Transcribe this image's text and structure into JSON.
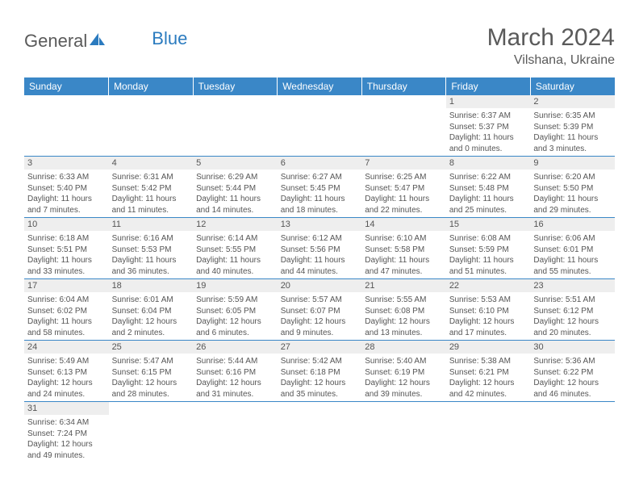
{
  "branding": {
    "logo_part1": "General",
    "logo_part2": "Blue",
    "logo_color1": "#5a5a5a",
    "logo_color2": "#2b7bbf"
  },
  "header": {
    "title": "March 2024",
    "location": "Vilshana, Ukraine"
  },
  "colors": {
    "header_bg": "#3a87c7",
    "header_text": "#ffffff",
    "daynum_bg": "#eeeeee",
    "border": "#3a87c7",
    "body_text": "#555555"
  },
  "weekdays": [
    "Sunday",
    "Monday",
    "Tuesday",
    "Wednesday",
    "Thursday",
    "Friday",
    "Saturday"
  ],
  "weeks": [
    [
      null,
      null,
      null,
      null,
      null,
      {
        "day": "1",
        "sunrise": "Sunrise: 6:37 AM",
        "sunset": "Sunset: 5:37 PM",
        "daylight": "Daylight: 11 hours and 0 minutes."
      },
      {
        "day": "2",
        "sunrise": "Sunrise: 6:35 AM",
        "sunset": "Sunset: 5:39 PM",
        "daylight": "Daylight: 11 hours and 3 minutes."
      }
    ],
    [
      {
        "day": "3",
        "sunrise": "Sunrise: 6:33 AM",
        "sunset": "Sunset: 5:40 PM",
        "daylight": "Daylight: 11 hours and 7 minutes."
      },
      {
        "day": "4",
        "sunrise": "Sunrise: 6:31 AM",
        "sunset": "Sunset: 5:42 PM",
        "daylight": "Daylight: 11 hours and 11 minutes."
      },
      {
        "day": "5",
        "sunrise": "Sunrise: 6:29 AM",
        "sunset": "Sunset: 5:44 PM",
        "daylight": "Daylight: 11 hours and 14 minutes."
      },
      {
        "day": "6",
        "sunrise": "Sunrise: 6:27 AM",
        "sunset": "Sunset: 5:45 PM",
        "daylight": "Daylight: 11 hours and 18 minutes."
      },
      {
        "day": "7",
        "sunrise": "Sunrise: 6:25 AM",
        "sunset": "Sunset: 5:47 PM",
        "daylight": "Daylight: 11 hours and 22 minutes."
      },
      {
        "day": "8",
        "sunrise": "Sunrise: 6:22 AM",
        "sunset": "Sunset: 5:48 PM",
        "daylight": "Daylight: 11 hours and 25 minutes."
      },
      {
        "day": "9",
        "sunrise": "Sunrise: 6:20 AM",
        "sunset": "Sunset: 5:50 PM",
        "daylight": "Daylight: 11 hours and 29 minutes."
      }
    ],
    [
      {
        "day": "10",
        "sunrise": "Sunrise: 6:18 AM",
        "sunset": "Sunset: 5:51 PM",
        "daylight": "Daylight: 11 hours and 33 minutes."
      },
      {
        "day": "11",
        "sunrise": "Sunrise: 6:16 AM",
        "sunset": "Sunset: 5:53 PM",
        "daylight": "Daylight: 11 hours and 36 minutes."
      },
      {
        "day": "12",
        "sunrise": "Sunrise: 6:14 AM",
        "sunset": "Sunset: 5:55 PM",
        "daylight": "Daylight: 11 hours and 40 minutes."
      },
      {
        "day": "13",
        "sunrise": "Sunrise: 6:12 AM",
        "sunset": "Sunset: 5:56 PM",
        "daylight": "Daylight: 11 hours and 44 minutes."
      },
      {
        "day": "14",
        "sunrise": "Sunrise: 6:10 AM",
        "sunset": "Sunset: 5:58 PM",
        "daylight": "Daylight: 11 hours and 47 minutes."
      },
      {
        "day": "15",
        "sunrise": "Sunrise: 6:08 AM",
        "sunset": "Sunset: 5:59 PM",
        "daylight": "Daylight: 11 hours and 51 minutes."
      },
      {
        "day": "16",
        "sunrise": "Sunrise: 6:06 AM",
        "sunset": "Sunset: 6:01 PM",
        "daylight": "Daylight: 11 hours and 55 minutes."
      }
    ],
    [
      {
        "day": "17",
        "sunrise": "Sunrise: 6:04 AM",
        "sunset": "Sunset: 6:02 PM",
        "daylight": "Daylight: 11 hours and 58 minutes."
      },
      {
        "day": "18",
        "sunrise": "Sunrise: 6:01 AM",
        "sunset": "Sunset: 6:04 PM",
        "daylight": "Daylight: 12 hours and 2 minutes."
      },
      {
        "day": "19",
        "sunrise": "Sunrise: 5:59 AM",
        "sunset": "Sunset: 6:05 PM",
        "daylight": "Daylight: 12 hours and 6 minutes."
      },
      {
        "day": "20",
        "sunrise": "Sunrise: 5:57 AM",
        "sunset": "Sunset: 6:07 PM",
        "daylight": "Daylight: 12 hours and 9 minutes."
      },
      {
        "day": "21",
        "sunrise": "Sunrise: 5:55 AM",
        "sunset": "Sunset: 6:08 PM",
        "daylight": "Daylight: 12 hours and 13 minutes."
      },
      {
        "day": "22",
        "sunrise": "Sunrise: 5:53 AM",
        "sunset": "Sunset: 6:10 PM",
        "daylight": "Daylight: 12 hours and 17 minutes."
      },
      {
        "day": "23",
        "sunrise": "Sunrise: 5:51 AM",
        "sunset": "Sunset: 6:12 PM",
        "daylight": "Daylight: 12 hours and 20 minutes."
      }
    ],
    [
      {
        "day": "24",
        "sunrise": "Sunrise: 5:49 AM",
        "sunset": "Sunset: 6:13 PM",
        "daylight": "Daylight: 12 hours and 24 minutes."
      },
      {
        "day": "25",
        "sunrise": "Sunrise: 5:47 AM",
        "sunset": "Sunset: 6:15 PM",
        "daylight": "Daylight: 12 hours and 28 minutes."
      },
      {
        "day": "26",
        "sunrise": "Sunrise: 5:44 AM",
        "sunset": "Sunset: 6:16 PM",
        "daylight": "Daylight: 12 hours and 31 minutes."
      },
      {
        "day": "27",
        "sunrise": "Sunrise: 5:42 AM",
        "sunset": "Sunset: 6:18 PM",
        "daylight": "Daylight: 12 hours and 35 minutes."
      },
      {
        "day": "28",
        "sunrise": "Sunrise: 5:40 AM",
        "sunset": "Sunset: 6:19 PM",
        "daylight": "Daylight: 12 hours and 39 minutes."
      },
      {
        "day": "29",
        "sunrise": "Sunrise: 5:38 AM",
        "sunset": "Sunset: 6:21 PM",
        "daylight": "Daylight: 12 hours and 42 minutes."
      },
      {
        "day": "30",
        "sunrise": "Sunrise: 5:36 AM",
        "sunset": "Sunset: 6:22 PM",
        "daylight": "Daylight: 12 hours and 46 minutes."
      }
    ],
    [
      {
        "day": "31",
        "sunrise": "Sunrise: 6:34 AM",
        "sunset": "Sunset: 7:24 PM",
        "daylight": "Daylight: 12 hours and 49 minutes."
      },
      null,
      null,
      null,
      null,
      null,
      null
    ]
  ]
}
